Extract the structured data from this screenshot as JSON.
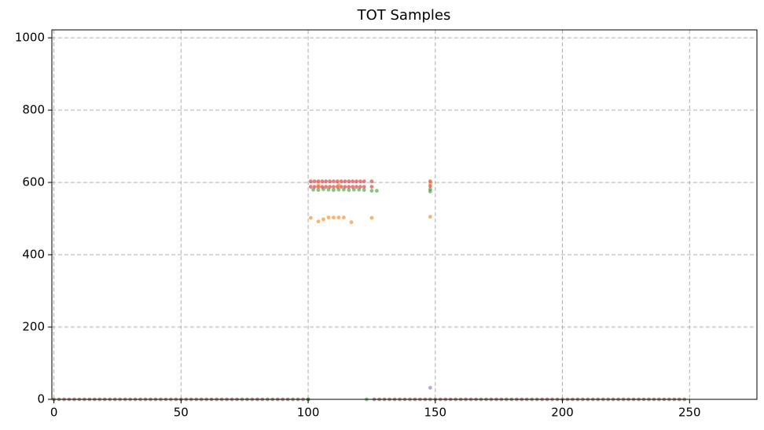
{
  "chart_data": {
    "type": "scatter",
    "title": "TOT Samples",
    "xlim": [
      -0.8,
      276.5
    ],
    "ylim": [
      0,
      1022
    ],
    "xticks": [
      0,
      50,
      100,
      150,
      200,
      250
    ],
    "yticks": [
      0,
      200,
      400,
      600,
      800,
      1000
    ],
    "grid": true,
    "series": [
      {
        "color": "#8c564b",
        "x": [
          0,
          2,
          4,
          6,
          8,
          10,
          12,
          14,
          16,
          18,
          20,
          22,
          24,
          26,
          28,
          30,
          32,
          34,
          36,
          38,
          40,
          42,
          44,
          46,
          48,
          50,
          52,
          54,
          56,
          58,
          60,
          62,
          64,
          66,
          68,
          70,
          72,
          74,
          76,
          78,
          80,
          82,
          84,
          86,
          88,
          90,
          92,
          94,
          96,
          98,
          100,
          126,
          128,
          130,
          132,
          134,
          136,
          138,
          140,
          142,
          144,
          146,
          148,
          150,
          152,
          154,
          156,
          158,
          160,
          162,
          164,
          166,
          168,
          170,
          172,
          174,
          176,
          178,
          180,
          182,
          184,
          186,
          188,
          190,
          192,
          194,
          196,
          198,
          200,
          202,
          204,
          206,
          208,
          210,
          212,
          214,
          216,
          218,
          220,
          222,
          224,
          226,
          228,
          230,
          232,
          234,
          236,
          238,
          240,
          242,
          244,
          246,
          248
        ],
        "y": [
          0,
          0,
          0,
          0,
          0,
          0,
          0,
          0,
          0,
          0,
          0,
          0,
          0,
          0,
          0,
          0,
          0,
          0,
          0,
          0,
          0,
          0,
          0,
          0,
          0,
          0,
          0,
          0,
          0,
          0,
          0,
          0,
          0,
          0,
          0,
          0,
          0,
          0,
          0,
          0,
          0,
          0,
          0,
          0,
          0,
          0,
          0,
          0,
          0,
          0,
          0,
          0,
          0,
          0,
          0,
          0,
          0,
          0,
          0,
          0,
          0,
          0,
          0,
          0,
          0,
          0,
          0,
          0,
          0,
          0,
          0,
          0,
          0,
          0,
          0,
          0,
          0,
          0,
          0,
          0,
          0,
          0,
          0,
          0,
          0,
          0,
          0,
          0,
          0,
          0,
          0,
          0,
          0,
          0,
          0,
          0,
          0,
          0,
          0,
          0,
          0,
          0,
          0,
          0,
          0,
          0,
          0,
          0,
          0,
          0,
          0,
          0,
          0
        ]
      },
      {
        "color": "#2ca02c",
        "x": [
          102,
          104,
          106,
          108,
          110,
          112,
          114,
          116,
          118,
          120,
          122,
          125,
          127,
          148,
          148,
          100,
          123
        ],
        "y": [
          580,
          579,
          581,
          580,
          579,
          580,
          580,
          579,
          580,
          580,
          579,
          577,
          577,
          575,
          581,
          0,
          0
        ]
      },
      {
        "color": "#d62728",
        "x": [
          101,
          102.5,
          104,
          105.5,
          107,
          108.5,
          110,
          111.5,
          113,
          114.5,
          116,
          117.5,
          119,
          120.5,
          122,
          125,
          148,
          101,
          102.5,
          104,
          105.5,
          107,
          108.5,
          110,
          111.5,
          113,
          114.5,
          116,
          117.5,
          119,
          120.5,
          122,
          125,
          148
        ],
        "y": [
          603,
          603,
          603,
          603,
          603,
          603,
          603,
          603,
          603,
          603,
          603,
          603,
          603,
          603,
          603,
          603,
          603,
          588,
          588,
          588,
          588,
          588,
          588,
          588,
          588,
          588,
          588,
          588,
          588,
          588,
          588,
          588,
          588,
          590
        ]
      },
      {
        "color": "#ff7f0e",
        "x": [
          101,
          104,
          106,
          108,
          110,
          112,
          114,
          117,
          125,
          148,
          148,
          104,
          112
        ],
        "y": [
          502,
          492,
          498,
          503,
          503,
          503,
          503,
          490,
          502,
          505,
          596,
          592,
          593
        ]
      },
      {
        "color": "#9467bd",
        "x": [
          148
        ],
        "y": [
          32
        ]
      }
    ]
  }
}
